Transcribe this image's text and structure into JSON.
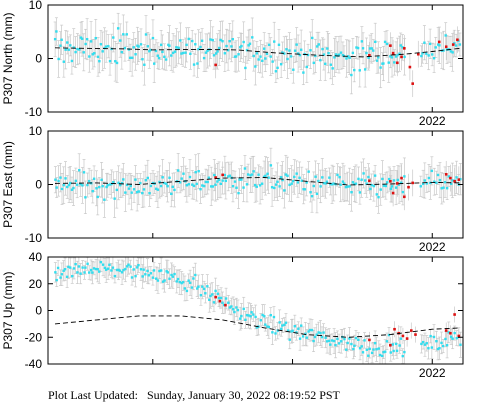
{
  "footer": {
    "prefix": "Plot Last Updated:",
    "timestamp": "Sunday, January 30, 2022 08:19:52 PST"
  },
  "colors": {
    "observed": "#33ddee",
    "recent": "#dd1111",
    "errorbar": "#c8c8c8",
    "model": "#000000",
    "frame": "#000000"
  },
  "chart_data": [
    {
      "type": "scatter",
      "ylabel": "P307 North (mm)",
      "ylim": [
        -10,
        10
      ],
      "yticks": [
        -10,
        0,
        10
      ],
      "xlim": [
        2019.25,
        2022.22
      ],
      "xtick_labels": [
        {
          "x": 2022.0,
          "label": "2022"
        }
      ],
      "grid": false,
      "trend": {
        "style": "dashed",
        "x": [
          2019.3,
          2019.5,
          2019.8,
          2020.0,
          2020.3,
          2020.6,
          2020.9,
          2021.2,
          2021.5,
          2021.8,
          2022.0,
          2022.2
        ],
        "y": [
          2.0,
          1.9,
          1.8,
          1.6,
          1.7,
          1.6,
          1.0,
          0.6,
          0.3,
          0.8,
          1.3,
          1.9
        ]
      },
      "series": [
        {
          "kind": "observed",
          "x_start": 2019.3,
          "x_end": 2021.8,
          "n": 205,
          "trend_offset": 0.0,
          "scatter": 2.2,
          "errorbar": 3.2
        },
        {
          "kind": "recent",
          "x": [
            2020.45,
            2021.55,
            2021.7,
            2021.72,
            2021.75,
            2021.78,
            2021.8,
            2021.84,
            2021.86,
            2021.9,
            2022.05,
            2022.1,
            2022.15,
            2022.18
          ],
          "y": [
            -1.2,
            0.6,
            2.4,
            1.0,
            -0.8,
            0.3,
            1.9,
            -1.6,
            -4.7,
            0.8,
            3.1,
            2.2,
            2.6,
            3.5
          ],
          "errorbar": 2.5
        },
        {
          "kind": "observed",
          "x_start": 2021.92,
          "x_end": 2022.2,
          "n": 22,
          "trend_offset": 0.5,
          "scatter": 1.6,
          "errorbar": 3.0
        }
      ]
    },
    {
      "type": "scatter",
      "ylabel": "P307 East (mm)",
      "ylim": [
        -10,
        10
      ],
      "yticks": [
        -10,
        0,
        10
      ],
      "xlim": [
        2019.25,
        2022.22
      ],
      "xtick_labels": [
        {
          "x": 2022.0,
          "label": "2022"
        }
      ],
      "grid": false,
      "trend": {
        "style": "dashed",
        "x": [
          2019.3,
          2019.6,
          2019.9,
          2020.2,
          2020.5,
          2020.8,
          2021.1,
          2021.4,
          2021.7,
          2022.0,
          2022.2
        ],
        "y": [
          0.2,
          0.3,
          0.0,
          0.6,
          1.2,
          1.3,
          0.6,
          -0.1,
          0.1,
          0.4,
          0.3
        ]
      },
      "series": [
        {
          "kind": "observed",
          "x_start": 2019.3,
          "x_end": 2021.8,
          "n": 205,
          "trend_offset": -0.3,
          "scatter": 1.6,
          "errorbar": 3.0
        },
        {
          "kind": "recent",
          "x": [
            2020.45,
            2020.5,
            2021.55,
            2021.7,
            2021.72,
            2021.75,
            2021.78,
            2021.8,
            2021.83,
            2021.86,
            2022.1,
            2022.13,
            2022.16,
            2022.19
          ],
          "y": [
            1.3,
            1.8,
            0.7,
            0.6,
            -1.6,
            0.2,
            1.2,
            -2.3,
            -0.5,
            0.3,
            1.9,
            1.2,
            0.6,
            0.9
          ],
          "errorbar": 2.5
        },
        {
          "kind": "observed",
          "x_start": 2021.92,
          "x_end": 2022.2,
          "n": 22,
          "trend_offset": 0.2,
          "scatter": 1.4,
          "errorbar": 2.8
        }
      ]
    },
    {
      "type": "scatter",
      "ylabel": "P307 Up (mm)",
      "ylim": [
        -40,
        40
      ],
      "yticks": [
        -40,
        -20,
        0,
        20,
        40
      ],
      "xlim": [
        2019.25,
        2022.22
      ],
      "xtick_labels": [
        {
          "x": 2022.0,
          "label": "2022"
        }
      ],
      "grid": false,
      "trend": {
        "style": "dashed",
        "x": [
          2019.3,
          2019.6,
          2019.9,
          2020.2,
          2020.5,
          2020.8,
          2021.1,
          2021.4,
          2021.7,
          2022.0,
          2022.2
        ],
        "y": [
          -10,
          -7,
          -4,
          -4,
          -7,
          -13,
          -18,
          -20,
          -18,
          -14,
          -13
        ]
      },
      "series": [
        {
          "kind": "observed",
          "x_start": 2019.3,
          "x_end": 2021.8,
          "n": 205,
          "y_path": {
            "x": [
              2019.3,
              2019.5,
              2020.0,
              2020.3,
              2020.5,
              2020.8,
              2021.1,
              2021.4,
              2021.6,
              2021.8
            ],
            "y": [
              24,
              32,
              29,
              20,
              6,
              -10,
              -18,
              -24,
              -28,
              -27
            ]
          },
          "scatter": 4.5,
          "errorbar": 8.0
        },
        {
          "kind": "recent",
          "x": [
            2020.45,
            2020.48,
            2020.52,
            2021.55,
            2021.7,
            2021.73,
            2021.76,
            2021.79,
            2021.82,
            2021.85,
            2021.88,
            2022.1,
            2022.13,
            2022.16,
            2022.19
          ],
          "y": [
            10,
            7,
            4,
            -22,
            -26,
            -14,
            -17,
            -19,
            -21,
            -15,
            -18,
            -15,
            -17,
            -3,
            -19
          ],
          "errorbar": 6.0
        },
        {
          "kind": "observed",
          "x_start": 2021.92,
          "x_end": 2022.2,
          "n": 22,
          "y_path": {
            "x": [
              2021.92,
              2022.05,
              2022.2
            ],
            "y": [
              -27,
              -24,
              -20
            ]
          },
          "scatter": 4.0,
          "errorbar": 8.0
        }
      ]
    }
  ]
}
